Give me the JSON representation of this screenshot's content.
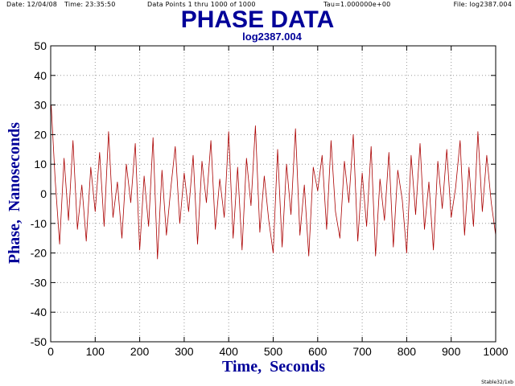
{
  "header": {
    "date": "Date: 12/04/08",
    "time": "Time: 23:35:50",
    "points": "Data Points 1 thru 1000 of 1000",
    "tau": "Tau=1.000000e+00",
    "file": "File: log2387.004"
  },
  "footer": {
    "tag": "Stable32/1xb"
  },
  "colors": {
    "title": "#000099",
    "series": "#aa0000",
    "grid": "#9a9a9a"
  },
  "chart_data": {
    "type": "line",
    "title": "PHASE DATA",
    "subtitle": "log2387.004",
    "xlabel": "Time,  Seconds",
    "ylabel": "Phase,  Nanoseconds",
    "xlim": [
      0,
      1000
    ],
    "ylim": [
      -50,
      50
    ],
    "xticks": [
      0,
      100,
      200,
      300,
      400,
      500,
      600,
      700,
      800,
      900,
      1000
    ],
    "yticks": [
      -50,
      -40,
      -30,
      -20,
      -10,
      0,
      10,
      20,
      30,
      40,
      50
    ],
    "grid": true,
    "legend": "none",
    "series": [
      {
        "x": [
          1,
          10,
          20,
          30,
          40,
          50,
          60,
          70,
          80,
          90,
          100,
          110,
          120,
          130,
          140,
          150,
          160,
          170,
          180,
          190,
          200,
          210,
          220,
          230,
          240,
          250,
          260,
          270,
          280,
          290,
          300,
          310,
          320,
          330,
          340,
          350,
          360,
          370,
          380,
          390,
          400,
          410,
          420,
          430,
          440,
          450,
          460,
          470,
          480,
          490,
          500,
          510,
          520,
          530,
          540,
          550,
          560,
          570,
          580,
          590,
          600,
          610,
          620,
          630,
          640,
          650,
          660,
          670,
          680,
          690,
          700,
          710,
          720,
          730,
          740,
          750,
          760,
          770,
          780,
          790,
          800,
          810,
          820,
          830,
          840,
          850,
          860,
          870,
          880,
          890,
          900,
          910,
          920,
          930,
          940,
          950,
          960,
          970,
          980,
          990,
          1000
        ],
        "y": [
          30,
          5,
          -17,
          12,
          -9,
          18,
          -12,
          3,
          -16,
          9,
          -6,
          14,
          -11,
          21,
          -8,
          4,
          -15,
          10,
          -3,
          17,
          -19,
          6,
          -11,
          19,
          -22,
          8,
          -14,
          2,
          16,
          -10,
          7,
          -6,
          13,
          -17,
          11,
          -3,
          18,
          -12,
          5,
          -8,
          21,
          -15,
          9,
          -19,
          12,
          -4,
          23,
          -13,
          6,
          -9,
          -20,
          15,
          -18,
          10,
          -7,
          22,
          -14,
          3,
          -21,
          9,
          1,
          13,
          -12,
          18,
          -6,
          -15,
          11,
          -3,
          20,
          -16,
          7,
          -11,
          16,
          -21,
          5,
          -9,
          14,
          -18,
          8,
          -2,
          -20,
          13,
          -7,
          17,
          -12,
          4,
          -19,
          11,
          -5,
          15,
          -8,
          2,
          18,
          -14,
          9,
          -11,
          21,
          -6,
          13,
          -3,
          -14
        ]
      }
    ]
  }
}
